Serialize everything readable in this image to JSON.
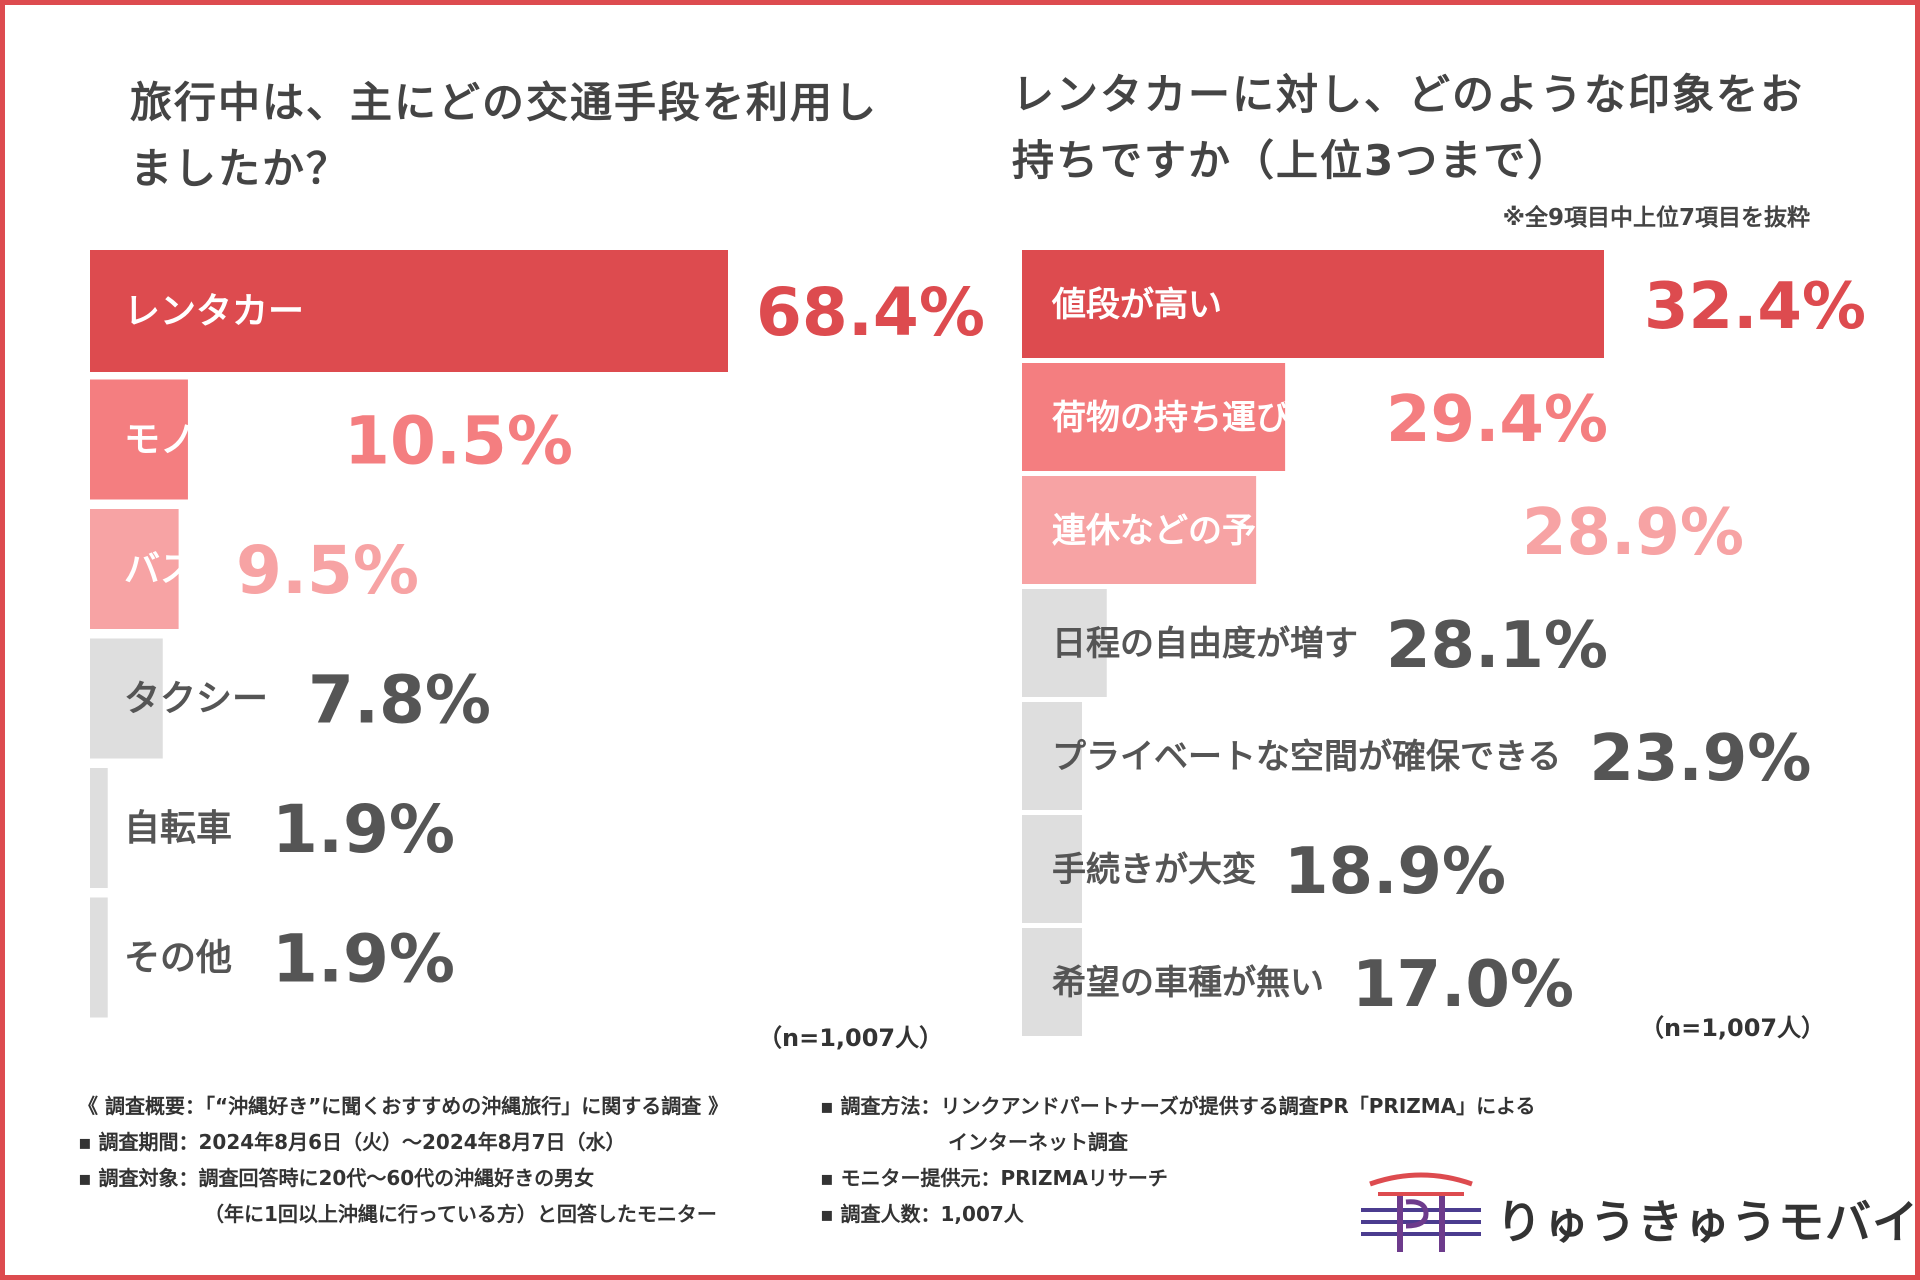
{
  "colors": {
    "border": "#dd4b4f",
    "primary": "#dd4b4f",
    "secondary": "#f47e80",
    "tertiary": "#f7a3a4",
    "neutral_bar": "#dedede",
    "label_text_dark": "#555555",
    "value_text_dark": "#555555"
  },
  "chart_data": [
    {
      "type": "bar",
      "orientation": "horizontal",
      "title": "旅行中は、主にどの交通手段を利用しましたか？",
      "categories": [
        "レンタカー",
        "モノレール",
        "バス",
        "タクシー",
        "自転車",
        "その他"
      ],
      "values": [
        68.4,
        10.5,
        9.5,
        7.8,
        1.9,
        1.9
      ],
      "value_labels": [
        "68.4%",
        "10.5%",
        "9.5%",
        "7.8%",
        "1.9%",
        "1.9%"
      ],
      "unit": "%",
      "sample": "（n=1,007人）"
    },
    {
      "type": "bar",
      "orientation": "horizontal",
      "title": "レンタカーに対し、どのような印象をお持ちですか（上位3つまで）",
      "note": "※全9項目中上位7項目を抜粋",
      "categories": [
        "値段が高い",
        "荷物の持ち運びが楽",
        "連休などの予約が取りづらい",
        "日程の自由度が増す",
        "プライベートな空間が確保できる",
        "手続きが大変",
        "希望の車種が無い"
      ],
      "values": [
        32.4,
        29.4,
        28.9,
        28.1,
        23.9,
        18.9,
        17.0
      ],
      "value_labels": [
        "32.4%",
        "29.4%",
        "28.9%",
        "28.1%",
        "23.9%",
        "18.9%",
        "17.0%"
      ],
      "unit": "%",
      "sample": "（n=1,007人）"
    }
  ],
  "footer": {
    "left": [
      "《 調査概要：「“沖縄好き”に聞くおすすめの沖縄旅行」に関する調査 》",
      "▪ 調査期間：2024年8月6日（火）～2024年8月7日（水）",
      "▪ 調査対象：調査回答時に20代～60代の沖縄好きの男女",
      "（年に1回以上沖縄に行っている方）と回答したモニター"
    ],
    "right": [
      "▪ 調査方法：リンクアンドパートナーズが提供する調査PR「PRIZMA」による",
      "インターネット調査",
      "▪ モニター提供元：PRIZMAリサーチ",
      "▪ 調査人数：1,007人"
    ]
  },
  "logo": {
    "text": "りゅうきゅうモバイル"
  }
}
